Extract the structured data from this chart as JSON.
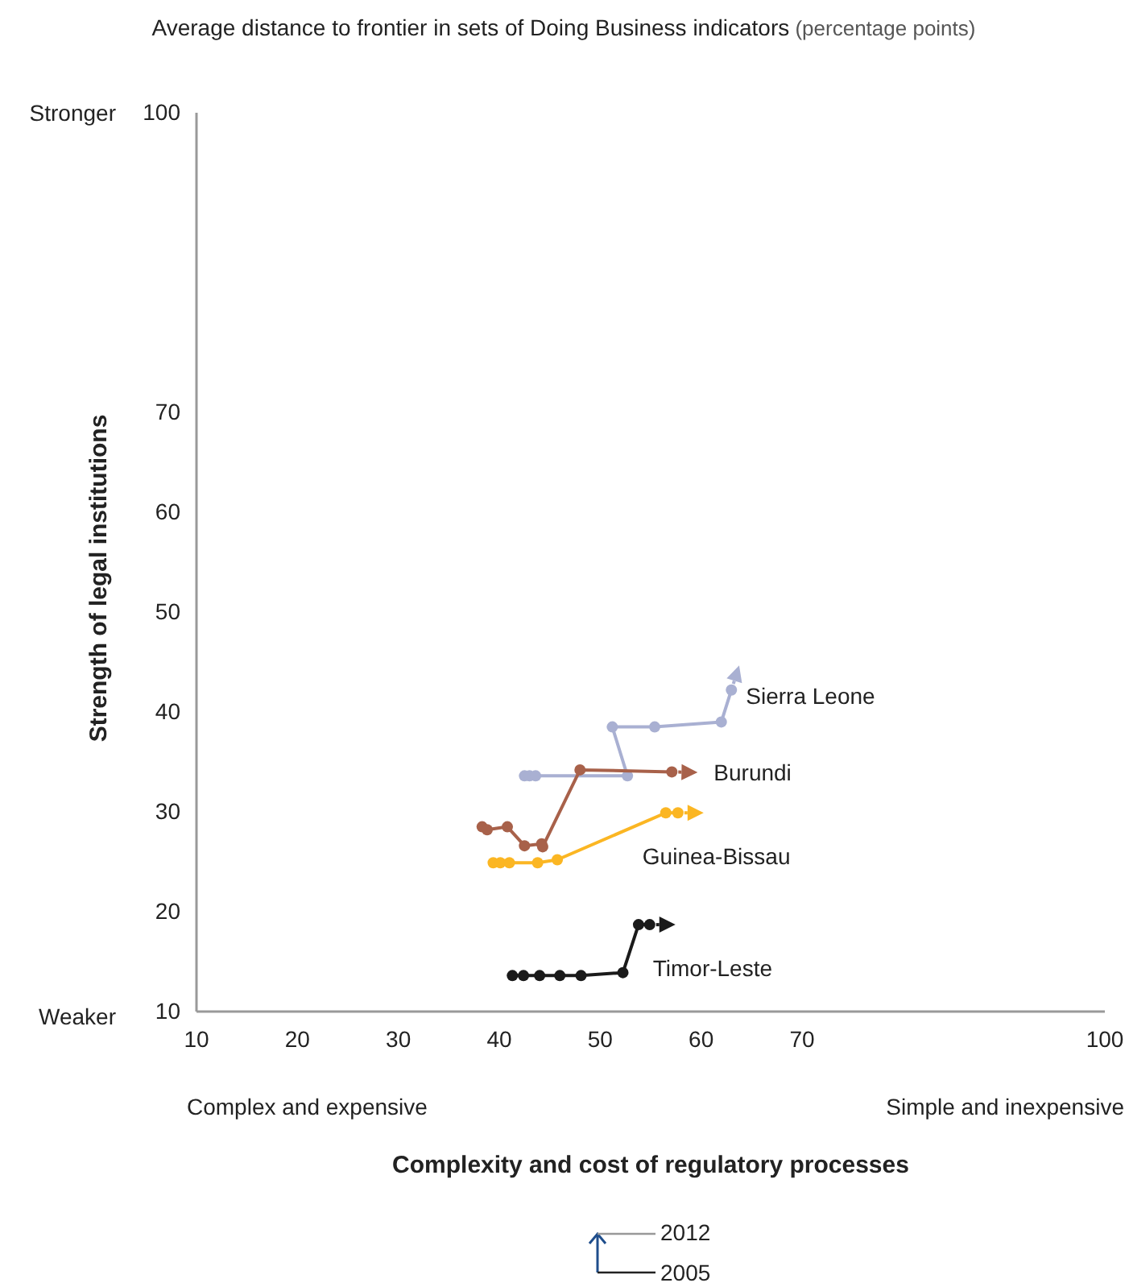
{
  "chart_data": {
    "type": "line",
    "title": "Average distance to frontier in sets of Doing Business indicators",
    "subtitle": "(percentage points)",
    "xlabel": "Complexity and cost of regulatory processes",
    "ylabel": "Strength of legal institutions",
    "xlim": [
      10,
      100
    ],
    "xticks": [
      10,
      20,
      30,
      40,
      50,
      60,
      70,
      100
    ],
    "ylim": [
      10,
      100
    ],
    "yticks": [
      10,
      20,
      30,
      40,
      50,
      60,
      70,
      100
    ],
    "marker": "circle",
    "line_style": "solid",
    "grid": false,
    "legend": "right",
    "series": [
      {
        "name": "Sierra Leone",
        "color": "#a9b0d2",
        "x": [
          42.5,
          43,
          43.6,
          52.7,
          51.2,
          55.4,
          62,
          63
        ],
        "values": [
          33.6,
          33.6,
          33.6,
          33.6,
          38.5,
          38.5,
          39,
          42.2
        ]
      },
      {
        "name": "Burundi",
        "color": "#a8614a",
        "x": [
          38.3,
          38.8,
          40.8,
          42.5,
          44.2,
          44.3,
          48,
          57.1
        ],
        "values": [
          28.5,
          28.2,
          28.5,
          26.6,
          26.8,
          26.5,
          34.2,
          34
        ]
      },
      {
        "name": "Guinea-Bissau",
        "color": "#fbb623",
        "x": [
          39.4,
          40.1,
          41,
          43.8,
          45.75,
          56.5,
          57.7
        ],
        "values": [
          24.9,
          24.9,
          24.9,
          24.9,
          25.2,
          29.9,
          29.9
        ]
      },
      {
        "name": "Timor-Leste",
        "color": "#1a1a1a",
        "x": [
          41.3,
          42.4,
          44,
          46,
          48.1,
          52.25,
          53.8,
          54.9
        ],
        "values": [
          13.6,
          13.6,
          13.6,
          13.6,
          13.6,
          13.9,
          18.7,
          18.7
        ]
      }
    ],
    "annotations": [
      "Stronger",
      "Weaker",
      "Complex and expensive",
      "Simple and inexpensive",
      "2012",
      "2005"
    ]
  }
}
